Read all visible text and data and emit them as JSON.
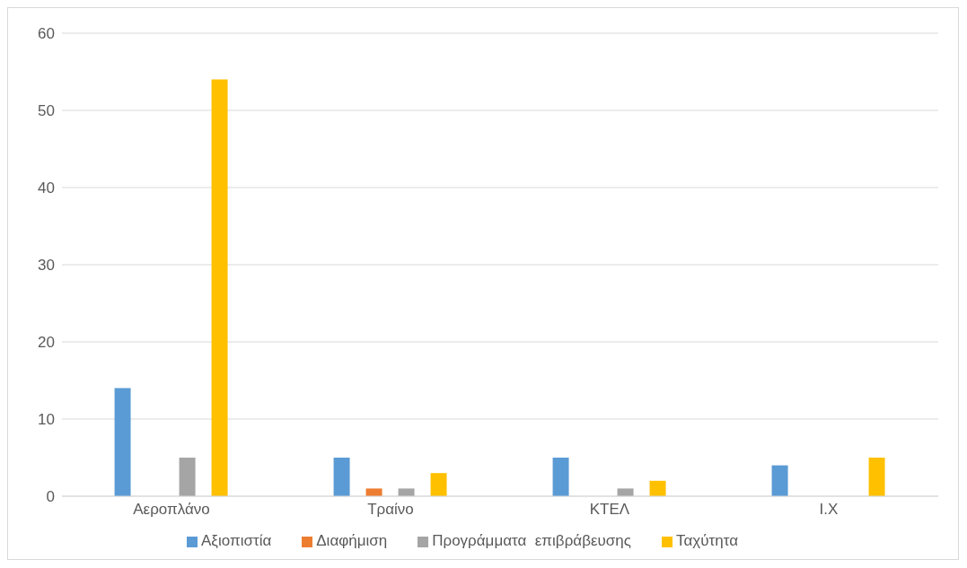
{
  "chart_data": {
    "type": "bar",
    "categories": [
      "Αεροπλάνο",
      "Τραίνο",
      "ΚΤΕΛ",
      "Ι.Χ"
    ],
    "series": [
      {
        "name": "Αξιοπιστία",
        "color": "#5b9bd5",
        "values": [
          14,
          5,
          5,
          4
        ]
      },
      {
        "name": "Διαφήμιση",
        "color": "#ed7d31",
        "values": [
          0,
          1,
          0,
          0
        ]
      },
      {
        "name": "Προγράμματα  επιβράβευσης",
        "color": "#a5a5a5",
        "values": [
          5,
          1,
          1,
          0
        ]
      },
      {
        "name": "Ταχύτητα",
        "color": "#ffc000",
        "values": [
          54,
          3,
          2,
          5
        ]
      }
    ],
    "ylim": [
      0,
      60
    ],
    "yticks": [
      0,
      10,
      20,
      30,
      40,
      50,
      60
    ],
    "grid": "y",
    "legend": "bottom"
  }
}
